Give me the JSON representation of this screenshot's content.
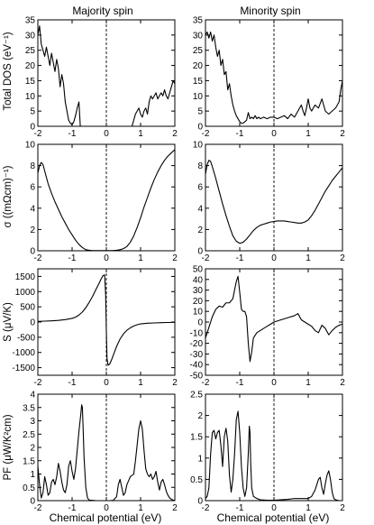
{
  "figure": {
    "col_titles": [
      "Majority spin",
      "Minority spin"
    ],
    "row_labels": [
      "Total DOS (eV⁻¹)",
      "σ ((mΩcm)⁻¹)",
      "S (μV/K)",
      "PF (μW/K²cm)"
    ],
    "xlabel": "Chemical potential (eV)",
    "line_color": "#000000"
  },
  "chart_data": [
    {
      "type": "line",
      "row": 0,
      "col": 0,
      "panel": "majority-dos",
      "title": "Majority spin",
      "ylabel": "Total DOS (eV⁻¹)",
      "xlabel": "",
      "xlim": [
        -2,
        2
      ],
      "ylim": [
        0,
        35
      ],
      "xticks": [
        -2,
        -1,
        0,
        1,
        2
      ],
      "yticks": [
        0,
        5,
        10,
        15,
        20,
        25,
        30,
        35
      ],
      "show_xticklabels": true,
      "zero_line": true,
      "series": [
        {
          "x": [
            -2.0,
            -1.95,
            -1.9,
            -1.85,
            -1.8,
            -1.75,
            -1.7,
            -1.65,
            -1.6,
            -1.55,
            -1.5,
            -1.45,
            -1.4,
            -1.35,
            -1.3,
            -1.25,
            -1.2,
            -1.15,
            -1.1,
            -1.05,
            -1.0,
            -0.95,
            -0.9,
            -0.85,
            -0.8,
            -0.78,
            -0.76,
            0.75,
            0.8,
            0.85,
            0.9,
            0.95,
            1.0,
            1.05,
            1.1,
            1.15,
            1.2,
            1.25,
            1.3,
            1.35,
            1.4,
            1.45,
            1.5,
            1.55,
            1.6,
            1.65,
            1.7,
            1.75,
            1.8,
            1.85,
            1.9,
            1.95,
            2.0
          ],
          "y": [
            30,
            33,
            27,
            25,
            23,
            26,
            23,
            20,
            24,
            21,
            18,
            22,
            19,
            13,
            17,
            14,
            8,
            5,
            2,
            1,
            0.5,
            1.5,
            3.5,
            6,
            8,
            4,
            0,
            0,
            2,
            4,
            5,
            6,
            4,
            3,
            5,
            6,
            4,
            8,
            10,
            9,
            10,
            11,
            9,
            10,
            11,
            10,
            12,
            10,
            9,
            11,
            13,
            15,
            14
          ]
        }
      ]
    },
    {
      "type": "line",
      "row": 0,
      "col": 1,
      "panel": "minority-dos",
      "title": "Minority spin",
      "ylabel": "",
      "xlabel": "",
      "xlim": [
        -2,
        2
      ],
      "ylim": [
        0,
        35
      ],
      "xticks": [
        -2,
        -1,
        0,
        1,
        2
      ],
      "yticks": [
        0,
        5,
        10,
        15,
        20,
        25,
        30,
        35
      ],
      "show_xticklabels": true,
      "zero_line": true,
      "series": [
        {
          "x": [
            -2.0,
            -1.95,
            -1.9,
            -1.85,
            -1.8,
            -1.75,
            -1.7,
            -1.65,
            -1.6,
            -1.55,
            -1.5,
            -1.45,
            -1.4,
            -1.35,
            -1.3,
            -1.25,
            -1.2,
            -1.15,
            -1.1,
            -1.05,
            -1.0,
            -0.95,
            -0.9,
            -0.85,
            -0.8,
            -0.75,
            -0.7,
            -0.65,
            -0.6,
            -0.55,
            -0.5,
            -0.45,
            -0.4,
            -0.3,
            -0.2,
            -0.1,
            0.0,
            0.1,
            0.2,
            0.3,
            0.4,
            0.5,
            0.6,
            0.7,
            0.8,
            0.85,
            0.9,
            0.95,
            1.0,
            1.05,
            1.1,
            1.2,
            1.3,
            1.4,
            1.5,
            1.6,
            1.7,
            1.8,
            1.9,
            1.95,
            2.0
          ],
          "y": [
            30,
            31,
            29,
            31,
            28,
            30,
            26,
            23,
            25,
            20,
            22,
            17,
            18,
            12,
            14,
            10,
            7,
            5,
            3.5,
            2.5,
            1.5,
            1.0,
            1.0,
            1.5,
            2.0,
            4.5,
            2.5,
            3.0,
            2.5,
            3.5,
            2.5,
            3.0,
            2.5,
            3.0,
            2.5,
            3.0,
            3.0,
            2.5,
            3.0,
            3.5,
            2.5,
            4.0,
            3.0,
            5.0,
            7.0,
            5.0,
            3.5,
            6.0,
            9.0,
            6.0,
            5.0,
            7.0,
            6.0,
            9.0,
            5.0,
            4.0,
            5.0,
            6.0,
            8.0,
            12.0,
            15.0
          ]
        }
      ]
    },
    {
      "type": "line",
      "row": 1,
      "col": 0,
      "panel": "majority-sigma",
      "title": "",
      "ylabel": "σ ((mΩcm)⁻¹)",
      "xlabel": "",
      "xlim": [
        -2,
        2
      ],
      "ylim": [
        0,
        10
      ],
      "xticks": [
        -2,
        -1,
        0,
        1,
        2
      ],
      "yticks": [
        0,
        2,
        4,
        6,
        8,
        10
      ],
      "show_xticklabels": true,
      "zero_line": true,
      "series": [
        {
          "x": [
            -2.0,
            -1.95,
            -1.9,
            -1.85,
            -1.8,
            -1.7,
            -1.6,
            -1.5,
            -1.4,
            -1.3,
            -1.2,
            -1.1,
            -1.0,
            -0.9,
            -0.8,
            -0.7,
            -0.6,
            -0.5,
            -0.4,
            -0.3,
            -0.2,
            -0.1,
            0.0,
            0.1,
            0.2,
            0.3,
            0.4,
            0.5,
            0.6,
            0.7,
            0.8,
            0.9,
            1.0,
            1.1,
            1.2,
            1.3,
            1.4,
            1.5,
            1.6,
            1.7,
            1.8,
            1.9,
            2.0
          ],
          "y": [
            7.3,
            8.0,
            8.3,
            8.1,
            7.5,
            6.3,
            5.4,
            4.6,
            3.9,
            3.2,
            2.6,
            2.0,
            1.5,
            1.0,
            0.6,
            0.3,
            0.1,
            0.05,
            0.02,
            0.02,
            0.02,
            0.02,
            0.02,
            0.02,
            0.03,
            0.05,
            0.1,
            0.2,
            0.4,
            0.8,
            1.4,
            2.2,
            3.1,
            4.1,
            5.0,
            5.9,
            6.7,
            7.4,
            8.0,
            8.5,
            8.9,
            9.2,
            9.5
          ]
        }
      ]
    },
    {
      "type": "line",
      "row": 1,
      "col": 1,
      "panel": "minority-sigma",
      "title": "",
      "ylabel": "",
      "xlabel": "",
      "xlim": [
        -2,
        2
      ],
      "ylim": [
        0,
        10
      ],
      "xticks": [
        -2,
        -1,
        0,
        1,
        2
      ],
      "yticks": [
        0,
        2,
        4,
        6,
        8,
        10
      ],
      "show_xticklabels": true,
      "zero_line": true,
      "series": [
        {
          "x": [
            -2.0,
            -1.95,
            -1.9,
            -1.85,
            -1.8,
            -1.7,
            -1.6,
            -1.5,
            -1.4,
            -1.3,
            -1.2,
            -1.1,
            -1.0,
            -0.9,
            -0.8,
            -0.7,
            -0.6,
            -0.5,
            -0.4,
            -0.3,
            -0.2,
            -0.1,
            0.0,
            0.1,
            0.2,
            0.3,
            0.4,
            0.5,
            0.6,
            0.7,
            0.8,
            0.9,
            1.0,
            1.1,
            1.2,
            1.3,
            1.4,
            1.5,
            1.6,
            1.7,
            1.8,
            1.9,
            2.0
          ],
          "y": [
            7.2,
            8.1,
            8.5,
            8.4,
            7.9,
            6.8,
            5.6,
            4.4,
            3.3,
            2.3,
            1.4,
            0.9,
            0.7,
            0.8,
            1.1,
            1.5,
            1.9,
            2.2,
            2.4,
            2.5,
            2.6,
            2.7,
            2.75,
            2.8,
            2.8,
            2.8,
            2.75,
            2.7,
            2.65,
            2.6,
            2.6,
            2.7,
            2.9,
            3.3,
            3.8,
            4.4,
            5.0,
            5.6,
            6.1,
            6.6,
            7.0,
            7.4,
            7.8
          ]
        }
      ]
    },
    {
      "type": "line",
      "row": 2,
      "col": 0,
      "panel": "majority-seebeck",
      "title": "",
      "ylabel": "S (μV/K)",
      "xlabel": "",
      "xlim": [
        -2,
        2
      ],
      "ylim": [
        -1750,
        1750
      ],
      "xticks": [
        -2,
        -1,
        0,
        1,
        2
      ],
      "yticks": [
        -1500,
        -1000,
        -500,
        0,
        500,
        1000,
        1500
      ],
      "show_xticklabels": true,
      "zero_line": true,
      "series": [
        {
          "x": [
            -2.0,
            -1.8,
            -1.6,
            -1.4,
            -1.2,
            -1.0,
            -0.9,
            -0.8,
            -0.7,
            -0.6,
            -0.5,
            -0.4,
            -0.3,
            -0.2,
            -0.15,
            -0.1,
            -0.05,
            -0.02,
            0.0,
            0.02,
            0.05,
            0.1,
            0.15,
            0.2,
            0.3,
            0.4,
            0.5,
            0.6,
            0.7,
            0.8,
            0.9,
            1.0,
            1.2,
            1.4,
            1.6,
            1.8,
            2.0
          ],
          "y": [
            20,
            30,
            40,
            55,
            80,
            120,
            160,
            230,
            330,
            470,
            650,
            850,
            1080,
            1300,
            1420,
            1520,
            1550,
            900,
            -300,
            -1200,
            -1420,
            -1380,
            -1250,
            -1100,
            -800,
            -560,
            -390,
            -270,
            -190,
            -130,
            -90,
            -60,
            -40,
            -30,
            -20,
            -15,
            -10
          ]
        }
      ]
    },
    {
      "type": "line",
      "row": 2,
      "col": 1,
      "panel": "minority-seebeck",
      "title": "",
      "ylabel": "",
      "xlabel": "",
      "xlim": [
        -2,
        2
      ],
      "ylim": [
        -50,
        50
      ],
      "xticks": [
        -2,
        -1,
        0,
        1,
        2
      ],
      "yticks": [
        -50,
        -40,
        -30,
        -20,
        -10,
        0,
        10,
        20,
        30,
        40,
        50
      ],
      "show_xticklabels": true,
      "zero_line": true,
      "series": [
        {
          "x": [
            -2.0,
            -1.9,
            -1.8,
            -1.7,
            -1.6,
            -1.5,
            -1.4,
            -1.3,
            -1.2,
            -1.1,
            -1.05,
            -1.0,
            -0.95,
            -0.9,
            -0.85,
            -0.8,
            -0.75,
            -0.7,
            -0.65,
            -0.6,
            -0.5,
            -0.4,
            -0.3,
            -0.2,
            -0.1,
            0.0,
            0.2,
            0.4,
            0.6,
            0.7,
            0.8,
            0.9,
            1.0,
            1.1,
            1.2,
            1.3,
            1.4,
            1.5,
            1.6,
            1.7,
            1.8,
            1.9,
            2.0
          ],
          "y": [
            -15,
            -5,
            5,
            12,
            15,
            14,
            18,
            18,
            22,
            38,
            43,
            28,
            12,
            10,
            10,
            5,
            -20,
            -37,
            -28,
            -15,
            -10,
            -8,
            -6,
            -4,
            -2,
            0,
            2,
            4,
            6,
            8,
            2,
            0,
            -2,
            -4,
            -8,
            -10,
            -3,
            -6,
            -12,
            -8,
            -5,
            -3,
            -2
          ]
        }
      ]
    },
    {
      "type": "line",
      "row": 3,
      "col": 0,
      "panel": "majority-pf",
      "title": "",
      "ylabel": "PF (μW/K²cm)",
      "xlabel": "Chemical potential (eV)",
      "xlim": [
        -2,
        2
      ],
      "ylim": [
        0,
        4
      ],
      "xticks": [
        -2,
        -1,
        0,
        1,
        2
      ],
      "yticks": [
        0,
        0.5,
        1,
        1.5,
        2,
        2.5,
        3,
        3.5,
        4
      ],
      "show_xticklabels": true,
      "zero_line": true,
      "series": [
        {
          "x": [
            -2.0,
            -1.95,
            -1.9,
            -1.85,
            -1.8,
            -1.75,
            -1.7,
            -1.65,
            -1.6,
            -1.55,
            -1.5,
            -1.45,
            -1.4,
            -1.35,
            -1.3,
            -1.25,
            -1.2,
            -1.15,
            -1.1,
            -1.05,
            -1.0,
            -0.95,
            -0.9,
            -0.85,
            -0.8,
            -0.75,
            -0.72,
            -0.7,
            -0.68,
            -0.65,
            -0.6,
            -0.55,
            -0.5,
            -0.4,
            -0.3,
            -0.2,
            -0.1,
            0.0,
            0.1,
            0.2,
            0.3,
            0.35,
            0.4,
            0.45,
            0.5,
            0.55,
            0.6,
            0.7,
            0.8,
            0.85,
            0.9,
            0.95,
            1.0,
            1.05,
            1.1,
            1.15,
            1.2,
            1.25,
            1.3,
            1.35,
            1.4,
            1.45,
            1.5,
            1.55,
            1.6,
            1.65,
            1.7,
            1.75,
            1.8,
            1.85,
            1.9,
            1.95,
            2.0
          ],
          "y": [
            1.3,
            0.6,
            0.1,
            0.3,
            0.9,
            0.6,
            0.2,
            0.3,
            0.7,
            0.8,
            0.6,
            0.9,
            1.4,
            1.1,
            0.7,
            0.4,
            0.3,
            0.6,
            1.3,
            1.5,
            1.1,
            0.8,
            1.2,
            1.9,
            2.6,
            3.2,
            3.6,
            3.5,
            2.8,
            1.6,
            0.5,
            0.1,
            0.02,
            0.01,
            0.0,
            0.0,
            0.0,
            0.0,
            0.0,
            0.01,
            0.15,
            0.6,
            0.8,
            0.5,
            0.2,
            0.3,
            0.6,
            0.9,
            1.0,
            1.5,
            2.1,
            2.7,
            3.0,
            2.7,
            1.9,
            1.2,
            1.0,
            0.9,
            1.0,
            0.8,
            0.9,
            1.1,
            0.7,
            0.4,
            0.7,
            0.8,
            0.6,
            0.35,
            0.2,
            0.1,
            0.05,
            0.02,
            0.0
          ]
        }
      ]
    },
    {
      "type": "line",
      "row": 3,
      "col": 1,
      "panel": "minority-pf",
      "title": "",
      "ylabel": "",
      "xlabel": "Chemical potential (eV)",
      "xlim": [
        -2,
        2
      ],
      "ylim": [
        0,
        2.5
      ],
      "xticks": [
        -2,
        -1,
        0,
        1,
        2
      ],
      "yticks": [
        0,
        0.5,
        1,
        1.5,
        2,
        2.5
      ],
      "show_xticklabels": true,
      "zero_line": true,
      "series": [
        {
          "x": [
            -2.0,
            -1.95,
            -1.9,
            -1.85,
            -1.8,
            -1.75,
            -1.7,
            -1.65,
            -1.6,
            -1.55,
            -1.5,
            -1.45,
            -1.4,
            -1.35,
            -1.3,
            -1.25,
            -1.2,
            -1.15,
            -1.1,
            -1.05,
            -1.0,
            -0.95,
            -0.9,
            -0.85,
            -0.8,
            -0.75,
            -0.72,
            -0.7,
            -0.68,
            -0.65,
            -0.6,
            -0.5,
            -0.4,
            -0.2,
            0.0,
            0.2,
            0.4,
            0.6,
            0.8,
            1.0,
            1.1,
            1.2,
            1.3,
            1.35,
            1.4,
            1.45,
            1.5,
            1.55,
            1.6,
            1.65,
            1.7,
            1.75,
            1.8,
            1.85,
            1.9,
            2.0
          ],
          "y": [
            0.05,
            0.1,
            0.3,
            1.1,
            1.6,
            1.65,
            1.45,
            1.6,
            1.65,
            1.3,
            0.8,
            1.5,
            1.7,
            1.4,
            0.6,
            0.2,
            0.5,
            1.1,
            1.9,
            2.1,
            1.6,
            0.8,
            0.3,
            0.1,
            0.3,
            1.1,
            1.75,
            1.6,
            0.9,
            0.3,
            0.1,
            0.05,
            0.02,
            0.01,
            0.01,
            0.02,
            0.03,
            0.05,
            0.05,
            0.05,
            0.1,
            0.25,
            0.5,
            0.55,
            0.3,
            0.15,
            0.4,
            0.6,
            0.7,
            0.5,
            0.2,
            0.05,
            0.02,
            0.01,
            0.0,
            0.0
          ]
        }
      ]
    }
  ]
}
